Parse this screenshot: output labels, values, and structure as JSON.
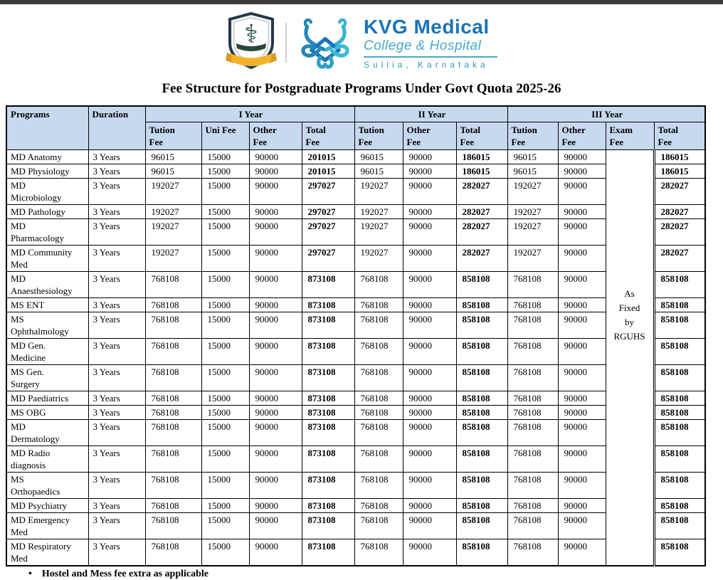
{
  "colors": {
    "top_bar": "#3a3a3a",
    "table_header_bg": "#c7d9ef",
    "brand_blue": "#1b74b8",
    "brand_teal": "#45a9c2",
    "location_teal": "#2d99b3",
    "ribbon_yellow": "#f2b32a"
  },
  "logo": {
    "crest": "shield-caduceus-crest",
    "brand_name": "KVG Medical",
    "brand_subtitle": "College & Hospital",
    "brand_location": "Sullia, Karnataka"
  },
  "page_title": "Fee Structure for Postgraduate Programs Under Govt Quota 2025-26",
  "table": {
    "corner_headers": [
      "Programs",
      "Duration"
    ],
    "year_headers": [
      "I Year",
      "II Year",
      "III Year"
    ],
    "sub_headers": [
      "Tution\nFee",
      "Uni Fee",
      "Other\nFee",
      "Total\nFee",
      "Tution\nFee",
      "Other\nFee",
      "Total\nFee",
      "Tution\nFee",
      "Other\nFee",
      "Exam\nFee",
      "Total\nFee"
    ],
    "exam_note": "As\nFixed\nby\nRGUHS",
    "rows": [
      {
        "program": "MD Anatomy",
        "duration": "3 Years",
        "y1": [
          "96015",
          "15000",
          "90000",
          "201015"
        ],
        "y2": [
          "96015",
          "90000",
          "186015"
        ],
        "y3": [
          "96015",
          "90000",
          "186015"
        ]
      },
      {
        "program": "MD Physiology",
        "duration": "3 Years",
        "y1": [
          "96015",
          "15000",
          "90000",
          "201015"
        ],
        "y2": [
          "96015",
          "90000",
          "186015"
        ],
        "y3": [
          "96015",
          "90000",
          "186015"
        ]
      },
      {
        "program": "MD\nMicrobiology",
        "duration": "3 Years",
        "y1": [
          "192027",
          "15000",
          "90000",
          "297027"
        ],
        "y2": [
          "192027",
          "90000",
          "282027"
        ],
        "y3": [
          "192027",
          "90000",
          "282027"
        ]
      },
      {
        "program": "MD Pathology",
        "duration": "3 Years",
        "y1": [
          "192027",
          "15000",
          "90000",
          "297027"
        ],
        "y2": [
          "192027",
          "90000",
          "282027"
        ],
        "y3": [
          "192027",
          "90000",
          "282027"
        ]
      },
      {
        "program": "MD\nPharmacology",
        "duration": "3 Years",
        "y1": [
          "192027",
          "15000",
          "90000",
          "297027"
        ],
        "y2": [
          "192027",
          "90000",
          "282027"
        ],
        "y3": [
          "192027",
          "90000",
          "282027"
        ]
      },
      {
        "program": "MD Community\nMed",
        "duration": "3 Years",
        "y1": [
          "192027",
          "15000",
          "90000",
          "297027"
        ],
        "y2": [
          "192027",
          "90000",
          "282027"
        ],
        "y3": [
          "192027",
          "90000",
          "282027"
        ]
      },
      {
        "program": "MD\nAnaesthesiology",
        "duration": "3 Years",
        "y1": [
          "768108",
          "15000",
          "90000",
          "873108"
        ],
        "y2": [
          "768108",
          "90000",
          "858108"
        ],
        "y3": [
          "768108",
          "90000",
          "858108"
        ]
      },
      {
        "program": "MS ENT",
        "duration": "3 Years",
        "y1": [
          "768108",
          "15000",
          "90000",
          "873108"
        ],
        "y2": [
          "768108",
          "90000",
          "858108"
        ],
        "y3": [
          "768108",
          "90000",
          "858108"
        ]
      },
      {
        "program": "MS\nOphthalmology",
        "duration": "3 Years",
        "y1": [
          "768108",
          "15000",
          "90000",
          "873108"
        ],
        "y2": [
          "768108",
          "90000",
          "858108"
        ],
        "y3": [
          "768108",
          "90000",
          "858108"
        ]
      },
      {
        "program": "MD Gen.\nMedicine",
        "duration": "3 Years",
        "y1": [
          "768108",
          "15000",
          "90000",
          "873108"
        ],
        "y2": [
          "768108",
          "90000",
          "858108"
        ],
        "y3": [
          "768108",
          "90000",
          "858108"
        ]
      },
      {
        "program": "MS Gen.\nSurgery",
        "duration": "3 Years",
        "y1": [
          "768108",
          "15000",
          "90000",
          "873108"
        ],
        "y2": [
          "768108",
          "90000",
          "858108"
        ],
        "y3": [
          "768108",
          "90000",
          "858108"
        ]
      },
      {
        "program": "MD Paediatrics",
        "duration": "3 Years",
        "y1": [
          "768108",
          "15000",
          "90000",
          "873108"
        ],
        "y2": [
          "768108",
          "90000",
          "858108"
        ],
        "y3": [
          "768108",
          "90000",
          "858108"
        ]
      },
      {
        "program": "MS OBG",
        "duration": "3 Years",
        "y1": [
          "768108",
          "15000",
          "90000",
          "873108"
        ],
        "y2": [
          "768108",
          "90000",
          "858108"
        ],
        "y3": [
          "768108",
          "90000",
          "858108"
        ]
      },
      {
        "program": "MD\nDermatology",
        "duration": "3 Years",
        "y1": [
          "768108",
          "15000",
          "90000",
          "873108"
        ],
        "y2": [
          "768108",
          "90000",
          "858108"
        ],
        "y3": [
          "768108",
          "90000",
          "858108"
        ]
      },
      {
        "program": "MD Radio\ndiagnosis",
        "duration": "3 Years",
        "y1": [
          "768108",
          "15000",
          "90000",
          "873108"
        ],
        "y2": [
          "768108",
          "90000",
          "858108"
        ],
        "y3": [
          "768108",
          "90000",
          "858108"
        ]
      },
      {
        "program": "MS\nOrthopaedics",
        "duration": "3 Years",
        "y1": [
          "768108",
          "15000",
          "90000",
          "873108"
        ],
        "y2": [
          "768108",
          "90000",
          "858108"
        ],
        "y3": [
          "768108",
          "90000",
          "858108"
        ]
      },
      {
        "program": "MD Psychiatry",
        "duration": "3 Years",
        "y1": [
          "768108",
          "15000",
          "90000",
          "873108"
        ],
        "y2": [
          "768108",
          "90000",
          "858108"
        ],
        "y3": [
          "768108",
          "90000",
          "858108"
        ]
      },
      {
        "program": "MD Emergency\nMed",
        "duration": "3 Years",
        "y1": [
          "768108",
          "15000",
          "90000",
          "873108"
        ],
        "y2": [
          "768108",
          "90000",
          "858108"
        ],
        "y3": [
          "768108",
          "90000",
          "858108"
        ]
      },
      {
        "program": "MD Respiratory\nMed",
        "duration": "3 Years",
        "y1": [
          "768108",
          "15000",
          "90000",
          "873108"
        ],
        "y2": [
          "768108",
          "90000",
          "858108"
        ],
        "y3": [
          "768108",
          "90000",
          "858108"
        ]
      }
    ]
  },
  "footer_note": "Hostel and Mess fee extra as applicable"
}
